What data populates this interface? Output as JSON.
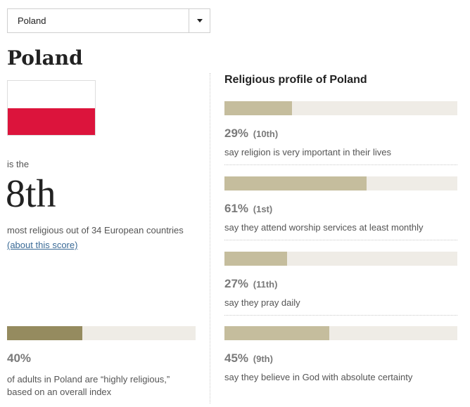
{
  "dropdown": {
    "selected": "Poland"
  },
  "country": {
    "name": "Poland",
    "flag_colors": {
      "top": "#ffffff",
      "bottom": "#dc143c"
    }
  },
  "ranking": {
    "prefix": "is the",
    "rank": "8th",
    "description": "most religious out of 34 European countries",
    "link": "(about this score)"
  },
  "overall": {
    "value": 0.4,
    "percent_label": "40%",
    "description": "of adults in Poland are “highly religious,” based on an overall index"
  },
  "profile": {
    "title": "Religious profile of Poland",
    "stats": [
      {
        "value": 0.29,
        "percent_label": "29%",
        "rank_label": "(10th)",
        "label": "say religion is very important in their lives"
      },
      {
        "value": 0.61,
        "percent_label": "61%",
        "rank_label": "(1st)",
        "label": "say they attend worship services at least monthly"
      },
      {
        "value": 0.27,
        "percent_label": "27%",
        "rank_label": "(11th)",
        "label": "say they pray daily"
      },
      {
        "value": 0.45,
        "percent_label": "45%",
        "rank_label": "(9th)",
        "label": "say they believe in God with absolute certainty"
      }
    ]
  },
  "colors": {
    "overall_bar": "#958b5f",
    "stat_bar": "#c5bd9d",
    "bar_track": "#efece6",
    "link": "#3a6a96"
  }
}
